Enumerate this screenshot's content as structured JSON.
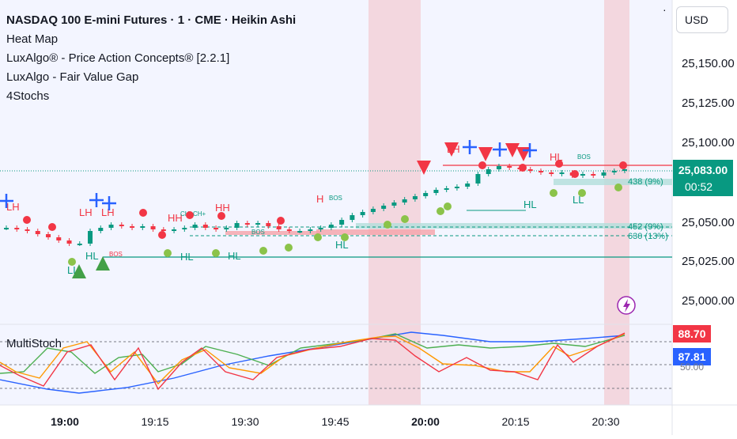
{
  "legend": {
    "symbol_line": "NASDAQ 100 E-mini Futures · 1 · CME · Heikin Ashi",
    "indicators": [
      "Heat Map",
      "LuxAlgo® - Price Action Concepts® [2.2.1]",
      "LuxAlgo - Fair Value Gap",
      "4Stochs"
    ]
  },
  "currency": "USD",
  "price_axis": {
    "ticks": [
      "25,150.00",
      "25,125.00",
      "25,100.00",
      "25,050.00",
      "25,025.00",
      "25,000.00"
    ],
    "current_price": "25,083.00",
    "countdown": "00:52"
  },
  "time_axis": {
    "ticks": [
      "19:00",
      "19:15",
      "19:30",
      "19:45",
      "20:00",
      "20:15",
      "20:30"
    ]
  },
  "oscillator": {
    "title": "MultiStoch",
    "badge_red": "88.70",
    "badge_blue": "87.81",
    "level_label": "50.00"
  },
  "structure_labels": [
    "LH",
    "LH",
    "LH",
    "HH",
    "HH",
    "H",
    "LH",
    "HL",
    "HL",
    "HL",
    "HL",
    "HL",
    "HL",
    "LL",
    "LL"
  ],
  "bos_labels": [
    "BOS",
    "BOS",
    "BOS",
    "BOS",
    "CHoCH+"
  ],
  "fvg_labels": [
    "438 (9%)",
    "452 (9%)",
    "630 (13%)"
  ],
  "colors": {
    "bull": "#089981",
    "bear": "#f23645",
    "session_pink": "#f3d7df",
    "chart_bg": "#f3f5ff",
    "stoch_blue": "#2962ff",
    "stoch_green": "#4caf50",
    "stoch_red": "#f23645",
    "stoch_orange": "#ff9800"
  },
  "chart_data": {
    "type": "candlestick",
    "x_range": [
      "18:55",
      "20:35"
    ],
    "y_range": [
      24985,
      25165
    ],
    "candles_close_approx": [
      25046,
      25045,
      25044,
      25042,
      25040,
      25038,
      25036,
      25036,
      25044,
      25046,
      25048,
      25047,
      25046,
      25047,
      25045,
      25044,
      25045,
      25046,
      25048,
      25046,
      25045,
      25046,
      25049,
      25048,
      25049,
      25047,
      25045,
      25044,
      25044,
      25045,
      25046,
      25048,
      25051,
      25054,
      25056,
      25058,
      25060,
      25062,
      25064,
      25066,
      25068,
      25070,
      25071,
      25072,
      25074,
      25080,
      25083,
      25085,
      25084,
      25083,
      25082,
      25081,
      25080,
      25081,
      25079,
      25080,
      25079,
      25081,
      25082,
      25083
    ],
    "horizontal_levels": [
      25096,
      25072,
      25053,
      25048,
      25035
    ],
    "oscillator_series": [
      {
        "name": "",
        "color": "#2962ff",
        "trend": "rising from ~10 to ~88"
      },
      {
        "name": "",
        "color": "#4caf50",
        "trend": "oscillating, ends ~87"
      },
      {
        "name": "",
        "color": "#f23645",
        "trend": "oscillating, ends ~88.70"
      },
      {
        "name": "",
        "color": "#ff9800",
        "trend": "oscillating, ends ~88"
      }
    ]
  }
}
